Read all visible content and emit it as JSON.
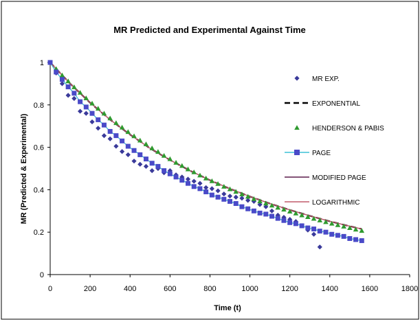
{
  "chart_data": {
    "type": "scatter",
    "title": "MR Predicted and Experimental Against Time",
    "xlabel": "Time (t)",
    "ylabel": "MR (Predicted & Experimental)",
    "xlim": [
      0,
      1800
    ],
    "ylim": [
      0,
      1.2
    ],
    "x_ticks": [
      "0",
      "200",
      "400",
      "600",
      "800",
      "1000",
      "1200",
      "1400",
      "1600",
      "1800"
    ],
    "y_ticks": [
      "0",
      "0.2",
      "0.4",
      "0.6",
      "0.8",
      "1"
    ],
    "grid": false,
    "legend_position": "right",
    "series": [
      {
        "name": "MR EXP.",
        "marker": "diamond",
        "color": "#3a3a9a",
        "x": [
          0,
          30,
          60,
          90,
          120,
          150,
          180,
          210,
          240,
          270,
          300,
          330,
          360,
          390,
          420,
          450,
          480,
          510,
          540,
          570,
          600,
          630,
          660,
          690,
          720,
          750,
          780,
          810,
          840,
          870,
          900,
          930,
          960,
          990,
          1020,
          1050,
          1080,
          1110,
          1140,
          1170,
          1200,
          1230,
          1260,
          1290,
          1320,
          1350
        ],
        "y": [
          1.0,
          0.95,
          0.9,
          0.845,
          0.83,
          0.77,
          0.76,
          0.72,
          0.69,
          0.655,
          0.64,
          0.605,
          0.58,
          0.565,
          0.535,
          0.52,
          0.51,
          0.49,
          0.5,
          0.48,
          0.49,
          0.47,
          0.46,
          0.45,
          0.44,
          0.43,
          0.41,
          0.405,
          0.395,
          0.38,
          0.37,
          0.365,
          0.36,
          0.35,
          0.345,
          0.33,
          0.32,
          0.3,
          0.28,
          0.27,
          0.26,
          0.25,
          0.23,
          0.21,
          0.19,
          0.13
        ]
      },
      {
        "name": "EXPONENTIAL",
        "marker": "dashed-line",
        "color": "#000000",
        "x": [
          0,
          100,
          200,
          300,
          400,
          500,
          600,
          700,
          800,
          900,
          1000,
          1100,
          1200,
          1300,
          1400,
          1500,
          1560
        ],
        "y": [
          1.0,
          0.9,
          0.81,
          0.73,
          0.66,
          0.595,
          0.54,
          0.49,
          0.445,
          0.405,
          0.368,
          0.335,
          0.305,
          0.277,
          0.251,
          0.228,
          0.215
        ]
      },
      {
        "name": "HENDERSON & PABIS",
        "marker": "triangle",
        "color": "#2f9a2f",
        "x": [
          0,
          30,
          60,
          90,
          120,
          150,
          180,
          210,
          240,
          270,
          300,
          330,
          360,
          390,
          420,
          450,
          480,
          510,
          540,
          570,
          600,
          630,
          660,
          690,
          720,
          750,
          780,
          810,
          840,
          870,
          900,
          930,
          960,
          990,
          1020,
          1050,
          1080,
          1110,
          1140,
          1170,
          1200,
          1230,
          1260,
          1290,
          1320,
          1350,
          1380,
          1410,
          1440,
          1470,
          1500,
          1530,
          1560
        ],
        "y": [
          1.0,
          0.97,
          0.94,
          0.912,
          0.884,
          0.858,
          0.832,
          0.807,
          0.783,
          0.76,
          0.737,
          0.715,
          0.694,
          0.673,
          0.653,
          0.633,
          0.615,
          0.596,
          0.579,
          0.561,
          0.545,
          0.528,
          0.513,
          0.497,
          0.483,
          0.468,
          0.454,
          0.441,
          0.428,
          0.415,
          0.403,
          0.391,
          0.379,
          0.368,
          0.357,
          0.346,
          0.336,
          0.326,
          0.316,
          0.307,
          0.298,
          0.289,
          0.28,
          0.272,
          0.264,
          0.256,
          0.248,
          0.241,
          0.234,
          0.227,
          0.22,
          0.213,
          0.207
        ]
      },
      {
        "name": "PAGE",
        "marker": "square-line",
        "color": "#4a4ac8",
        "line_color": "#3cc0d6",
        "x": [
          0,
          30,
          60,
          90,
          120,
          150,
          180,
          210,
          240,
          270,
          300,
          330,
          360,
          390,
          420,
          450,
          480,
          510,
          540,
          570,
          600,
          630,
          660,
          690,
          720,
          750,
          780,
          810,
          840,
          870,
          900,
          930,
          960,
          990,
          1020,
          1050,
          1080,
          1110,
          1140,
          1170,
          1200,
          1230,
          1260,
          1290,
          1320,
          1350,
          1380,
          1410,
          1440,
          1470,
          1500,
          1530,
          1560
        ],
        "y": [
          1.0,
          0.955,
          0.92,
          0.885,
          0.855,
          0.815,
          0.79,
          0.76,
          0.73,
          0.705,
          0.675,
          0.655,
          0.63,
          0.605,
          0.585,
          0.565,
          0.545,
          0.525,
          0.51,
          0.49,
          0.475,
          0.46,
          0.445,
          0.43,
          0.415,
          0.405,
          0.39,
          0.375,
          0.365,
          0.355,
          0.345,
          0.335,
          0.32,
          0.31,
          0.3,
          0.29,
          0.285,
          0.275,
          0.265,
          0.255,
          0.245,
          0.24,
          0.23,
          0.22,
          0.215,
          0.205,
          0.2,
          0.19,
          0.185,
          0.18,
          0.17,
          0.165,
          0.16
        ]
      },
      {
        "name": "MODIFIED PAGE",
        "marker": "line",
        "color": "#5a1a4a",
        "x": [
          0,
          100,
          200,
          300,
          400,
          500,
          600,
          700,
          800,
          900,
          1000,
          1100,
          1200,
          1300,
          1400,
          1500,
          1560
        ],
        "y": [
          1.0,
          0.9,
          0.81,
          0.73,
          0.66,
          0.595,
          0.54,
          0.49,
          0.445,
          0.405,
          0.368,
          0.335,
          0.305,
          0.277,
          0.251,
          0.228,
          0.215
        ]
      },
      {
        "name": "LOGARITHMIC",
        "marker": "line",
        "color": "#c05a6a",
        "x": [
          0,
          100,
          200,
          300,
          400,
          500,
          600,
          700,
          800,
          900,
          1000,
          1100,
          1200,
          1300,
          1400,
          1500,
          1560
        ],
        "y": [
          1.0,
          0.9,
          0.81,
          0.73,
          0.66,
          0.595,
          0.54,
          0.49,
          0.445,
          0.405,
          0.368,
          0.335,
          0.305,
          0.277,
          0.251,
          0.228,
          0.215
        ]
      }
    ]
  }
}
